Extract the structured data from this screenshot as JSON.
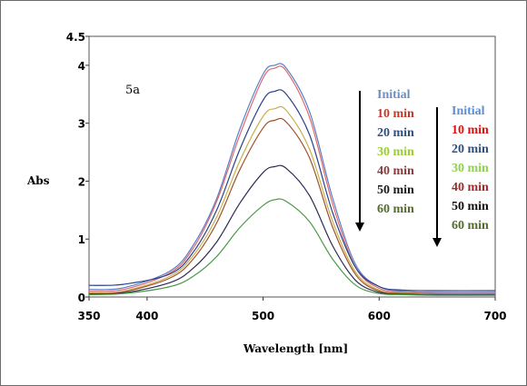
{
  "chart_data": {
    "type": "line",
    "panel_label": "5a",
    "xlabel": "Wavelength [nm]",
    "ylabel": "Abs",
    "xlim": [
      350,
      700
    ],
    "ylim": [
      0,
      4.5
    ],
    "x_ticks": [
      350,
      400,
      500,
      600,
      700
    ],
    "x_tick_labels": [
      "350",
      "400",
      "500",
      "600",
      "700"
    ],
    "y_ticks": [
      0,
      1,
      2,
      3,
      4,
      4.5
    ],
    "y_tick_labels": [
      "0",
      "1",
      "2",
      "3",
      "4",
      "4.5"
    ],
    "x": [
      350,
      380,
      420,
      440,
      460,
      480,
      500,
      510,
      520,
      540,
      560,
      580,
      600,
      620,
      650,
      700
    ],
    "series": [
      {
        "name": "Initial",
        "color": "#5b7fc7",
        "values": [
          0.13,
          0.16,
          0.45,
          0.9,
          1.7,
          2.9,
          3.85,
          4.0,
          3.95,
          3.2,
          1.7,
          0.55,
          0.18,
          0.1,
          0.08,
          0.08
        ]
      },
      {
        "name": "10 min",
        "color": "#e06868",
        "values": [
          0.1,
          0.13,
          0.42,
          0.85,
          1.65,
          2.8,
          3.78,
          3.95,
          3.9,
          3.1,
          1.6,
          0.5,
          0.15,
          0.08,
          0.06,
          0.06
        ]
      },
      {
        "name": "20 min",
        "color": "#2b3f8f",
        "values": [
          0.2,
          0.22,
          0.4,
          0.78,
          1.5,
          2.55,
          3.4,
          3.55,
          3.5,
          2.8,
          1.45,
          0.5,
          0.18,
          0.12,
          0.11,
          0.11
        ]
      },
      {
        "name": "30 min",
        "color": "#c9b04c",
        "values": [
          0.07,
          0.1,
          0.36,
          0.72,
          1.38,
          2.35,
          3.12,
          3.25,
          3.22,
          2.55,
          1.3,
          0.42,
          0.12,
          0.07,
          0.05,
          0.05
        ]
      },
      {
        "name": "40 min",
        "color": "#a0522d",
        "values": [
          0.06,
          0.09,
          0.33,
          0.66,
          1.28,
          2.2,
          2.92,
          3.05,
          3.02,
          2.4,
          1.2,
          0.38,
          0.1,
          0.06,
          0.04,
          0.04
        ]
      },
      {
        "name": "50 min",
        "color": "#2d2a55",
        "values": [
          0.05,
          0.07,
          0.25,
          0.5,
          0.95,
          1.62,
          2.15,
          2.25,
          2.22,
          1.75,
          0.88,
          0.28,
          0.08,
          0.05,
          0.04,
          0.04
        ]
      },
      {
        "name": "60 min",
        "color": "#4a9a4a",
        "values": [
          0.04,
          0.06,
          0.18,
          0.36,
          0.7,
          1.2,
          1.58,
          1.68,
          1.65,
          1.3,
          0.65,
          0.2,
          0.06,
          0.04,
          0.03,
          0.03
        ]
      }
    ],
    "legend_inside": [
      {
        "label": "Initial",
        "color": "#6f8fbf"
      },
      {
        "label": "10 min",
        "color": "#c0392b"
      },
      {
        "label": "20 min",
        "color": "#2f4f7f"
      },
      {
        "label": "30 min",
        "color": "#9acd32"
      },
      {
        "label": "40 min",
        "color": "#8b3a3a"
      },
      {
        "label": "50 min",
        "color": "#1a1a1a"
      },
      {
        "label": "60 min",
        "color": "#556b2f"
      }
    ],
    "legend_outside": [
      {
        "label": "Initial",
        "color": "#5b8fd6"
      },
      {
        "label": "10 min",
        "color": "#e01010"
      },
      {
        "label": "20 min",
        "color": "#2f4f7f"
      },
      {
        "label": "30 min",
        "color": "#8fd14f"
      },
      {
        "label": "40 min",
        "color": "#a52a2a"
      },
      {
        "label": "50 min",
        "color": "#111111"
      },
      {
        "label": "60 min",
        "color": "#556b2f"
      }
    ],
    "grid": false
  }
}
